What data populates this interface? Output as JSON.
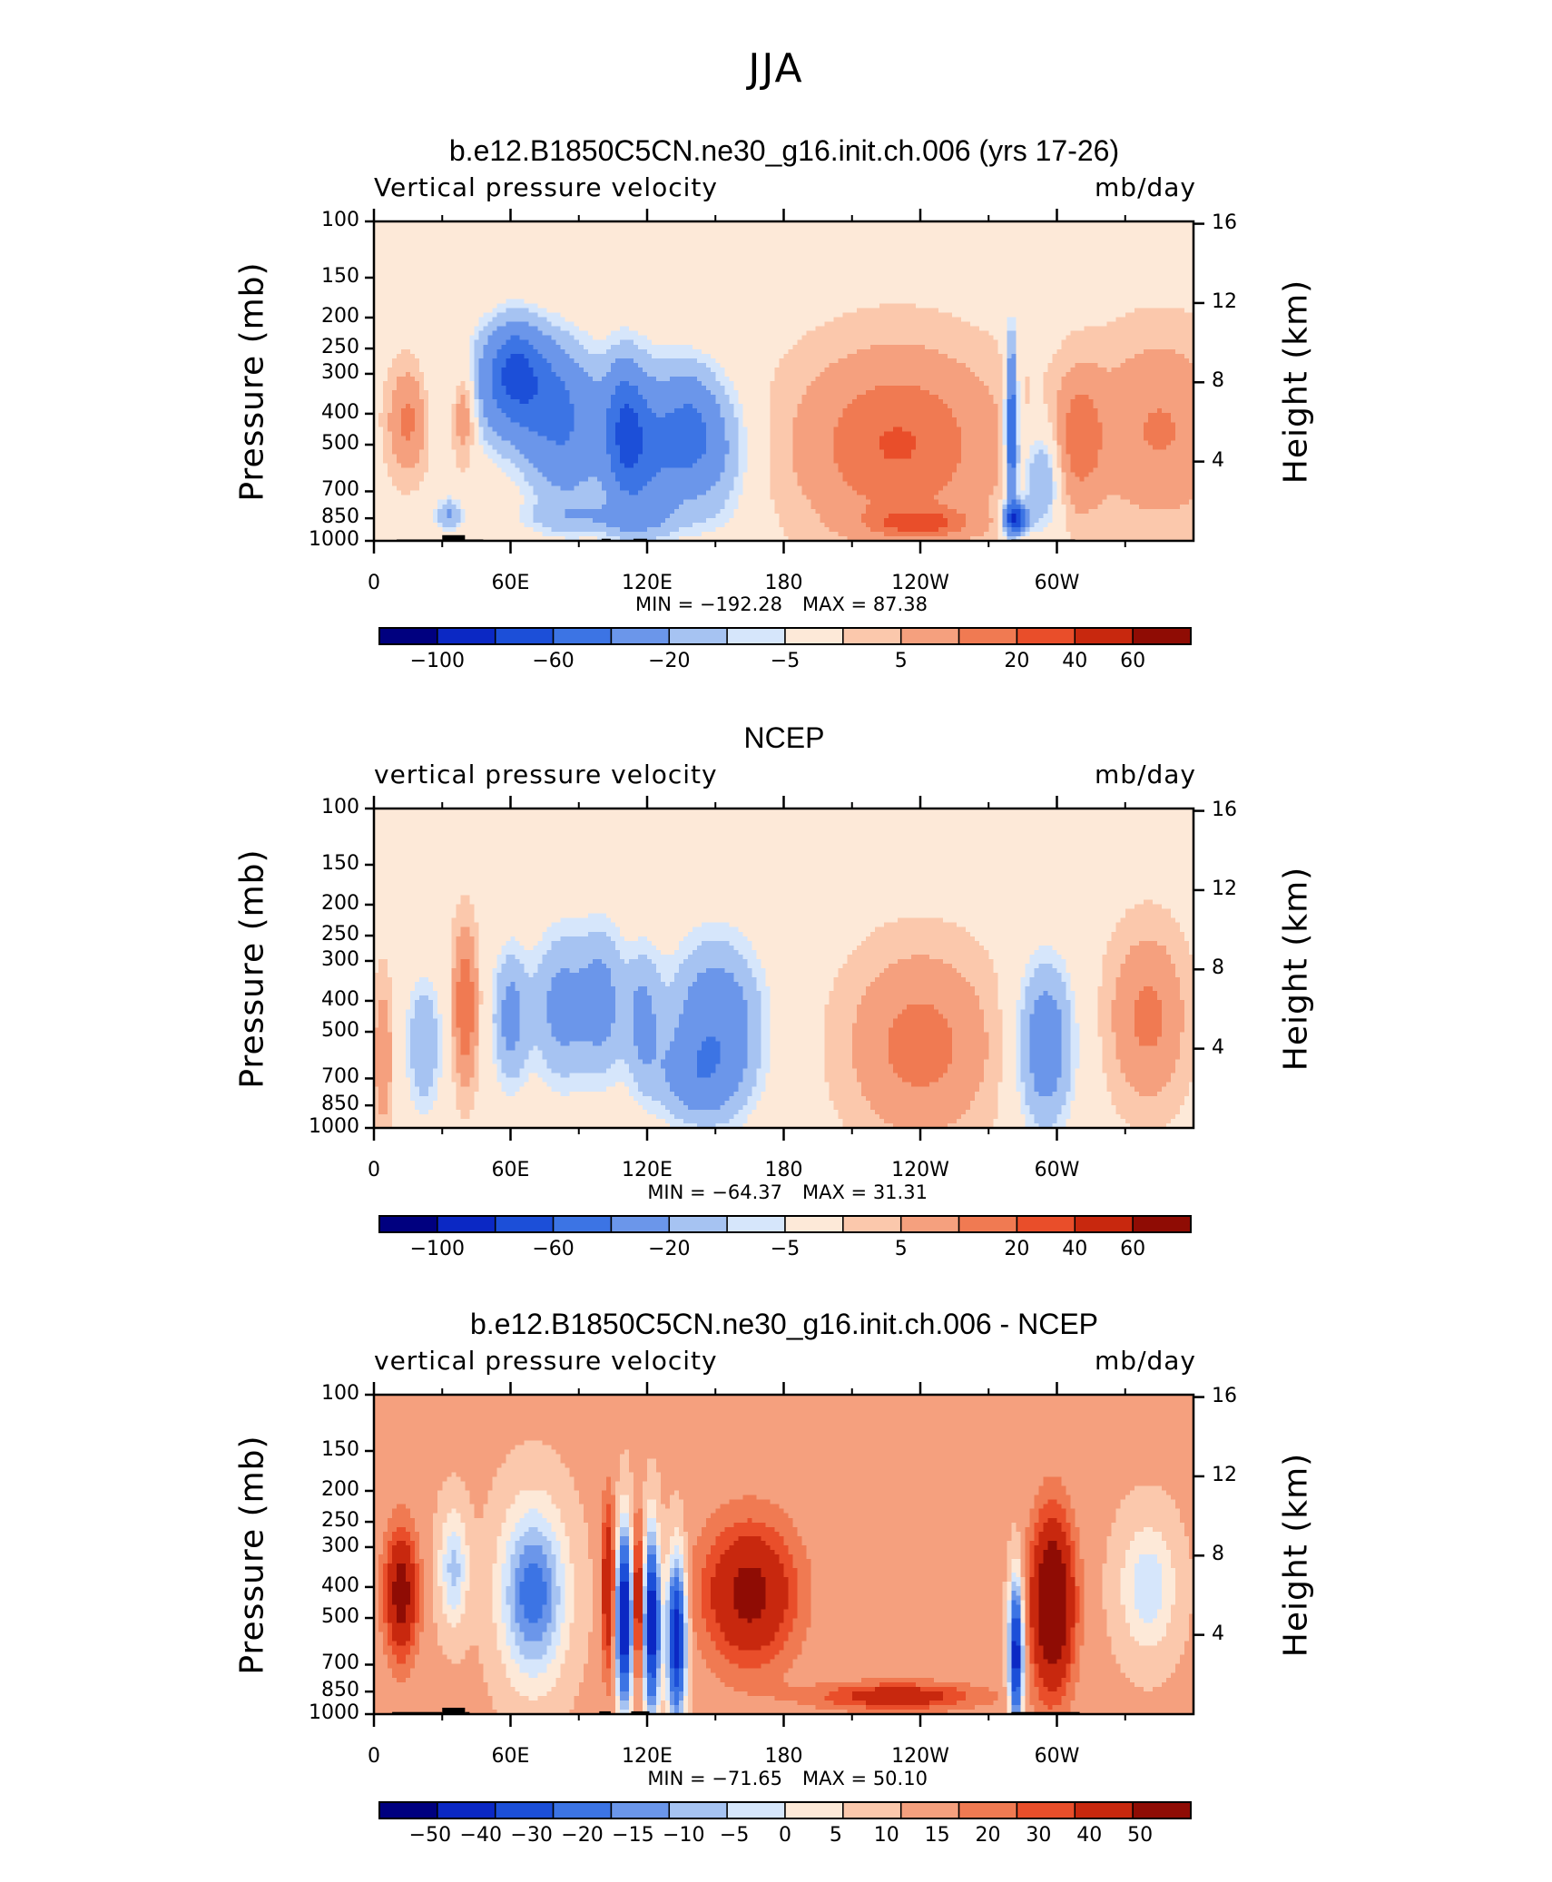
{
  "figure": {
    "title": "JJA"
  },
  "palettes": {
    "full": [
      "#00007f",
      "#0b28c4",
      "#1c4fd8",
      "#3c74e4",
      "#6b96ea",
      "#a6c3f2",
      "#d6e6fb",
      "#fde9d8",
      "#fbc8ac",
      "#f5a07e",
      "#f07a52",
      "#e94e2a",
      "#c8280e",
      "#8f0c04"
    ],
    "diff": [
      "#00007f",
      "#0b28c4",
      "#1c4fd8",
      "#3c74e4",
      "#6b96ea",
      "#a6c3f2",
      "#d6e6fb",
      "#fde9d8",
      "#fbc8ac",
      "#f5a07e",
      "#f07a52",
      "#e94e2a",
      "#c8280e",
      "#8f0c04"
    ]
  },
  "chart_data": [
    {
      "type": "heatmap",
      "title": "b.e12.B1850C5CN.ne30_g16.init.ch.006 (yrs 17-26)",
      "left_label": "Vertical pressure velocity",
      "right_label": "mb/day",
      "ylabel": "Pressure (mb)",
      "y2label": "Height (km)",
      "x_ticks": [
        {
          "lon": 0,
          "label": "0"
        },
        {
          "lon": 60,
          "label": "60E"
        },
        {
          "lon": 120,
          "label": "120E"
        },
        {
          "lon": 180,
          "label": "180"
        },
        {
          "lon": 240,
          "label": "120W"
        },
        {
          "lon": 300,
          "label": "60W"
        }
      ],
      "y_ticks": [
        100,
        150,
        200,
        250,
        300,
        400,
        500,
        700,
        850,
        1000
      ],
      "y2_ticks": [
        4,
        8,
        12,
        16
      ],
      "xlim": [
        0,
        360
      ],
      "ylim": [
        1000,
        100
      ],
      "y_scale": "log",
      "min_text": "MIN = −192.28",
      "max_text": "MAX =   87.38",
      "colorbar_levels": [
        "−100",
        "−60",
        "−20",
        "−5",
        "5",
        "20",
        "40",
        "60"
      ],
      "colorbar_label_bins": [
        1,
        3,
        5,
        7,
        9,
        11,
        12,
        13
      ],
      "palette": "full",
      "topography": [
        [
          10,
          30,
          990,
          1000
        ],
        [
          30,
          40,
          960,
          1000
        ],
        [
          40,
          48,
          990,
          1000
        ],
        [
          100,
          104,
          985,
          1000
        ],
        [
          114,
          120,
          985,
          1000
        ],
        [
          280,
          308,
          990,
          1000
        ]
      ],
      "blobs": [
        {
          "lon": 15,
          "p": 420,
          "w": 8,
          "h": 0.35,
          "v": 20
        },
        {
          "lon": 40,
          "p": 380,
          "w": 6,
          "h": 0.35,
          "v": 25
        },
        {
          "lon": 33,
          "p": 830,
          "w": 6,
          "h": 0.12,
          "v": -25
        },
        {
          "lon": 65,
          "p": 330,
          "w": 25,
          "h": 0.42,
          "v": -48
        },
        {
          "lon": 62,
          "p": 280,
          "w": 10,
          "h": 0.3,
          "v": -30
        },
        {
          "lon": 85,
          "p": 500,
          "w": 18,
          "h": 0.5,
          "v": -32
        },
        {
          "lon": 110,
          "p": 450,
          "w": 9,
          "h": 0.5,
          "v": -45
        },
        {
          "lon": 120,
          "p": 520,
          "w": 14,
          "h": 0.55,
          "v": -40
        },
        {
          "lon": 138,
          "p": 450,
          "w": 12,
          "h": 0.45,
          "v": -35
        },
        {
          "lon": 150,
          "p": 520,
          "w": 15,
          "h": 0.5,
          "v": -22
        },
        {
          "lon": 100,
          "p": 850,
          "w": 35,
          "h": 0.12,
          "v": -15
        },
        {
          "lon": 230,
          "p": 500,
          "w": 40,
          "h": 0.62,
          "v": 28
        },
        {
          "lon": 240,
          "p": 880,
          "w": 22,
          "h": 0.1,
          "v": 25
        },
        {
          "lon": 280,
          "p": 450,
          "w": 2.5,
          "h": 0.6,
          "v": -65
        },
        {
          "lon": 282,
          "p": 850,
          "w": 5,
          "h": 0.1,
          "v": -80
        },
        {
          "lon": 293,
          "p": 650,
          "w": 8,
          "h": 0.35,
          "v": -25
        },
        {
          "lon": 310,
          "p": 480,
          "w": 10,
          "h": 0.45,
          "v": 22
        },
        {
          "lon": 345,
          "p": 450,
          "w": 28,
          "h": 0.6,
          "v": 18
        }
      ],
      "bg": 3
    },
    {
      "type": "heatmap",
      "title": "NCEP",
      "left_label": "vertical pressure velocity",
      "right_label": "mb/day",
      "ylabel": "Pressure (mb)",
      "y2label": "Height (km)",
      "x_ticks": [
        {
          "lon": 0,
          "label": "0"
        },
        {
          "lon": 60,
          "label": "60E"
        },
        {
          "lon": 120,
          "label": "120E"
        },
        {
          "lon": 180,
          "label": "180"
        },
        {
          "lon": 240,
          "label": "120W"
        },
        {
          "lon": 300,
          "label": "60W"
        }
      ],
      "y_ticks": [
        100,
        150,
        200,
        250,
        300,
        400,
        500,
        700,
        850,
        1000
      ],
      "y2_ticks": [
        4,
        8,
        12,
        16
      ],
      "xlim": [
        0,
        360
      ],
      "ylim": [
        1000,
        100
      ],
      "y_scale": "log",
      "min_text": "MIN = −64.37",
      "max_text": "MAX =   31.31",
      "colorbar_levels": [
        "−100",
        "−60",
        "−20",
        "−5",
        "5",
        "20",
        "40",
        "60"
      ],
      "colorbar_label_bins": [
        1,
        3,
        5,
        7,
        9,
        11,
        12,
        13
      ],
      "palette": "full",
      "topography": [],
      "blobs": [
        {
          "lon": 22,
          "p": 550,
          "w": 8,
          "h": 0.5,
          "v": -22
        },
        {
          "lon": 40,
          "p": 420,
          "w": 5,
          "h": 0.5,
          "v": 28
        },
        {
          "lon": 60,
          "p": 450,
          "w": 8,
          "h": 0.5,
          "v": -28
        },
        {
          "lon": 82,
          "p": 420,
          "w": 12,
          "h": 0.55,
          "v": -28
        },
        {
          "lon": 100,
          "p": 400,
          "w": 10,
          "h": 0.55,
          "v": -28
        },
        {
          "lon": 118,
          "p": 450,
          "w": 8,
          "h": 0.5,
          "v": -24
        },
        {
          "lon": 150,
          "p": 480,
          "w": 20,
          "h": 0.6,
          "v": -38
        },
        {
          "lon": 140,
          "p": 700,
          "w": 18,
          "h": 0.3,
          "v": -20
        },
        {
          "lon": 240,
          "p": 550,
          "w": 28,
          "h": 0.6,
          "v": 22
        },
        {
          "lon": 295,
          "p": 550,
          "w": 12,
          "h": 0.6,
          "v": -35
        },
        {
          "lon": 340,
          "p": 450,
          "w": 15,
          "h": 0.55,
          "v": 20
        },
        {
          "lon": 4,
          "p": 600,
          "w": 4,
          "h": 0.5,
          "v": 15
        }
      ],
      "bg": 3
    },
    {
      "type": "heatmap",
      "title": "b.e12.B1850C5CN.ne30_g16.init.ch.006 - NCEP",
      "left_label": "vertical pressure velocity",
      "right_label": "mb/day",
      "ylabel": "Pressure (mb)",
      "y2label": "Height (km)",
      "x_ticks": [
        {
          "lon": 0,
          "label": "0"
        },
        {
          "lon": 60,
          "label": "60E"
        },
        {
          "lon": 120,
          "label": "120E"
        },
        {
          "lon": 180,
          "label": "180"
        },
        {
          "lon": 240,
          "label": "120W"
        },
        {
          "lon": 300,
          "label": "60W"
        }
      ],
      "y_ticks": [
        100,
        150,
        200,
        250,
        300,
        400,
        500,
        700,
        850,
        1000
      ],
      "y2_ticks": [
        4,
        8,
        12,
        16
      ],
      "xlim": [
        0,
        360
      ],
      "ylim": [
        1000,
        100
      ],
      "y_scale": "log",
      "min_text": "MIN = −71.65",
      "max_text": "MAX =   50.10",
      "colorbar_levels": [
        "−50",
        "−40",
        "−30",
        "−20",
        "−15",
        "−10",
        "−5",
        "0",
        "5",
        "10",
        "15",
        "20",
        "30",
        "40",
        "50"
      ],
      "colorbar_label_bins": [
        1,
        2,
        3,
        4,
        5,
        6,
        7,
        7,
        8,
        9,
        10,
        11,
        12,
        13,
        14
      ],
      "palette": "diff",
      "topography": [
        [
          8,
          30,
          985,
          1000
        ],
        [
          30,
          40,
          955,
          1000
        ],
        [
          40,
          42,
          985,
          1000
        ],
        [
          99,
          104,
          980,
          1000
        ],
        [
          113,
          121,
          980,
          1000
        ],
        [
          280,
          310,
          985,
          1000
        ]
      ],
      "blobs": [
        {
          "lon": 12,
          "p": 420,
          "w": 7,
          "h": 0.45,
          "v": 30
        },
        {
          "lon": 35,
          "p": 350,
          "w": 6,
          "h": 0.4,
          "v": -18
        },
        {
          "lon": 70,
          "p": 420,
          "w": 14,
          "h": 0.6,
          "v": -30
        },
        {
          "lon": 110,
          "p": 500,
          "w": 3.5,
          "h": 0.6,
          "v": -60
        },
        {
          "lon": 122,
          "p": 520,
          "w": 3.5,
          "h": 0.6,
          "v": -58
        },
        {
          "lon": 133,
          "p": 580,
          "w": 4,
          "h": 0.55,
          "v": -55
        },
        {
          "lon": 103,
          "p": 400,
          "w": 3,
          "h": 0.6,
          "v": 25
        },
        {
          "lon": 116,
          "p": 450,
          "w": 2.5,
          "h": 0.55,
          "v": 28
        },
        {
          "lon": 165,
          "p": 420,
          "w": 20,
          "h": 0.5,
          "v": 28
        },
        {
          "lon": 230,
          "p": 880,
          "w": 35,
          "h": 0.1,
          "v": 20
        },
        {
          "lon": 282,
          "p": 650,
          "w": 3,
          "h": 0.5,
          "v": -55
        },
        {
          "lon": 298,
          "p": 450,
          "w": 9,
          "h": 0.6,
          "v": 42
        },
        {
          "lon": 340,
          "p": 400,
          "w": 12,
          "h": 0.45,
          "v": -15
        }
      ],
      "bg": 6
    }
  ]
}
